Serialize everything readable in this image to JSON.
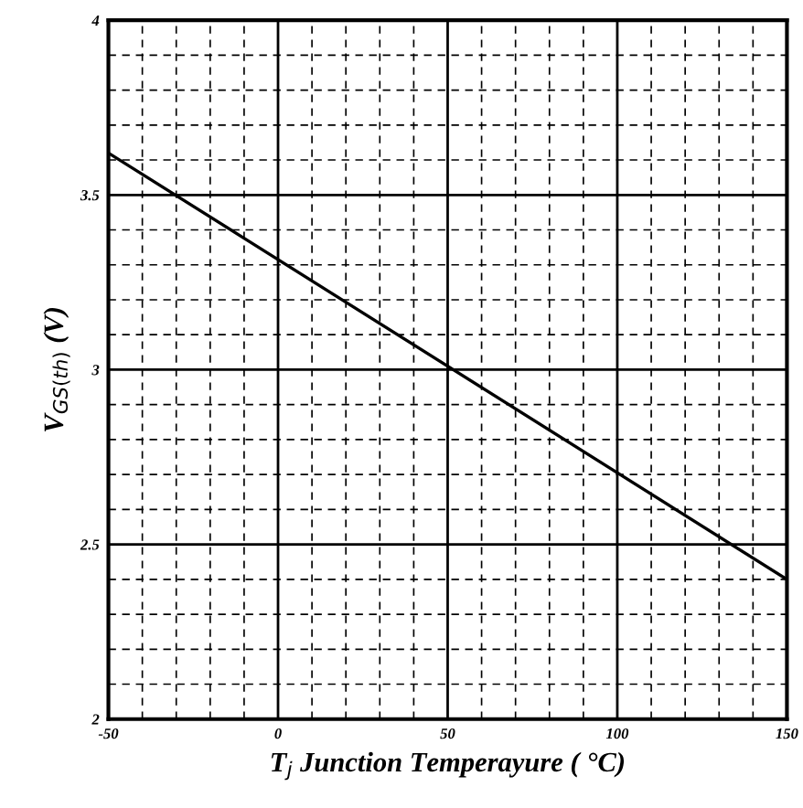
{
  "chart_data": {
    "type": "line",
    "xlabel": "T$_{j}$ Junction Temperayure ( °C)",
    "ylabel": "V$_{GS(th)}$ (V)",
    "x": [
      -50,
      150
    ],
    "series": [
      {
        "color": "#000000",
        "values": [
          3.62,
          2.4
        ]
      }
    ],
    "xlim": [
      -50,
      150
    ],
    "xticks": [
      -50,
      0,
      50,
      100,
      150
    ],
    "ylim": [
      2,
      4
    ],
    "yticks": [
      2,
      2.5,
      3,
      3.5,
      4
    ],
    "grid": true,
    "marker": "none",
    "line_style": "solid"
  }
}
